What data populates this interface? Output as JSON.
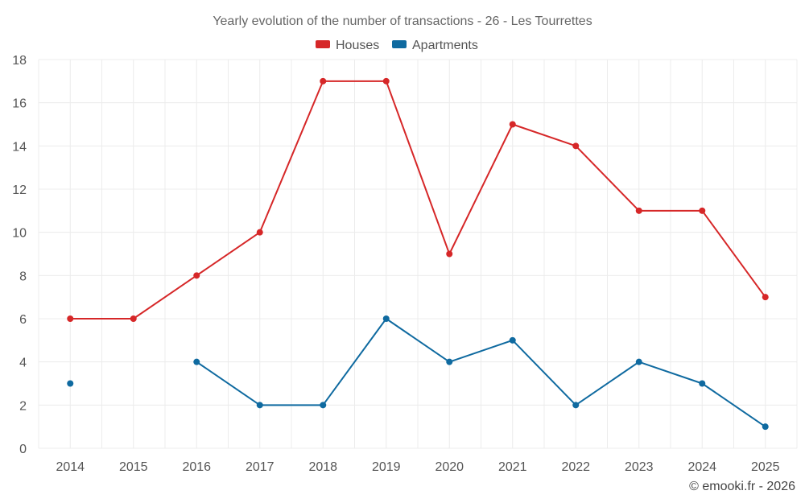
{
  "chart_data": {
    "type": "line",
    "title": "Yearly evolution of the number of transactions - 26 - Les Tourrettes",
    "xlabel": "",
    "ylabel": "",
    "categories": [
      "2014",
      "2015",
      "2016",
      "2017",
      "2018",
      "2019",
      "2020",
      "2021",
      "2022",
      "2023",
      "2024",
      "2025"
    ],
    "ylim": [
      0,
      18
    ],
    "yticks": [
      0,
      2,
      4,
      6,
      8,
      10,
      12,
      14,
      16,
      18
    ],
    "grid": true,
    "legend_position": "top-center",
    "series": [
      {
        "name": "Houses",
        "color": "#d62728",
        "values": [
          6,
          6,
          8,
          10,
          17,
          17,
          9,
          15,
          14,
          11,
          11,
          7
        ]
      },
      {
        "name": "Apartments",
        "color": "#0f6aa0",
        "values": [
          3,
          null,
          4,
          2,
          2,
          6,
          4,
          5,
          2,
          4,
          3,
          1
        ]
      }
    ]
  },
  "credit": "© emooki.fr - 2026"
}
